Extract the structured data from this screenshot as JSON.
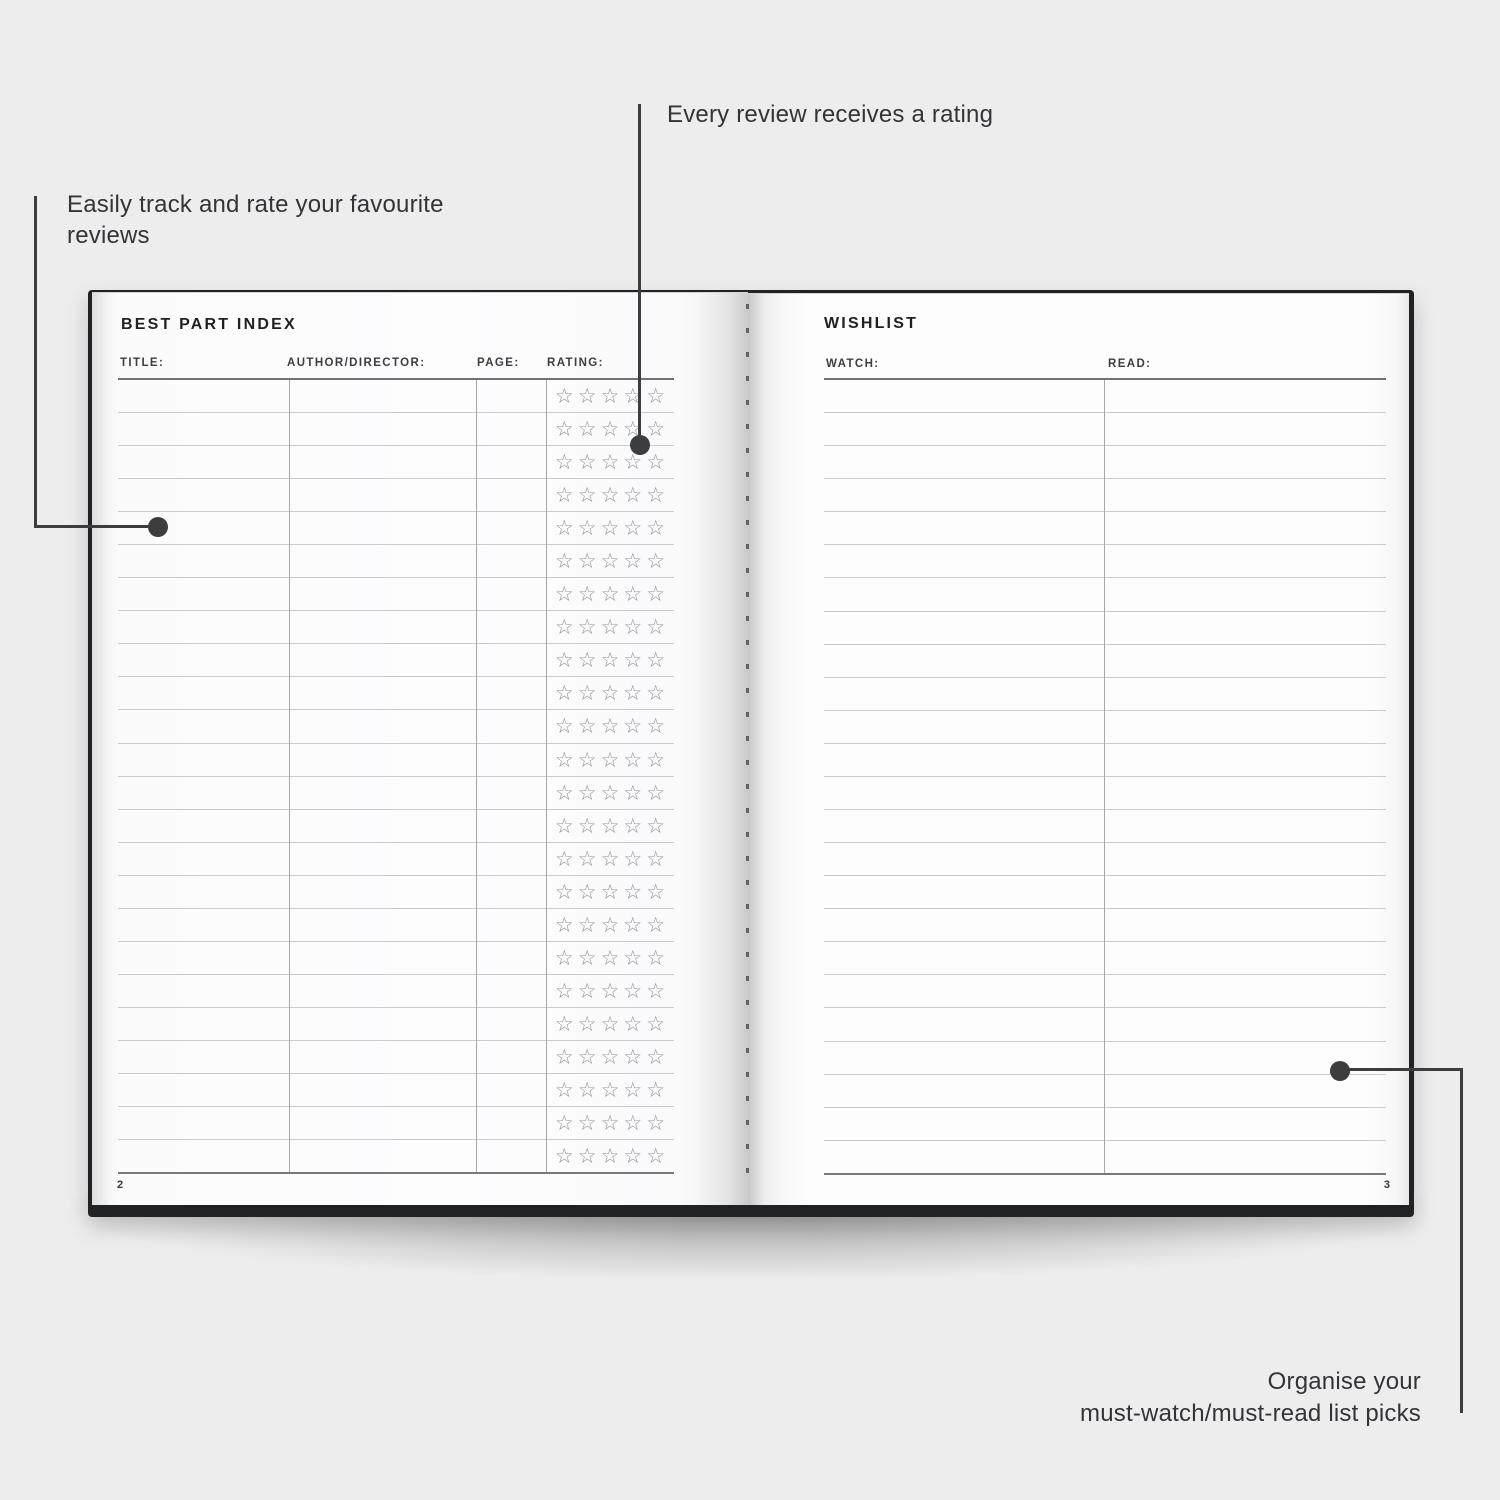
{
  "background_color": "#ededee",
  "annotations": {
    "track_rate": "Easily track and rate your favourite reviews",
    "rating": "Every review receives a rating",
    "wishlist_line1": "Organise your",
    "wishlist_line2": "must-watch/must-read list picks"
  },
  "left_page": {
    "title": "BEST PART INDEX",
    "columns": [
      "TITLE:",
      "AUTHOR/DIRECTOR:",
      "PAGE:",
      "RATING:"
    ],
    "rows": 24,
    "stars_per_row": 5,
    "star_char": "☆",
    "page_number": "2"
  },
  "right_page": {
    "title": "WISHLIST",
    "columns": [
      "WATCH:",
      "READ:"
    ],
    "rows": 24,
    "page_number": "3"
  },
  "colors": {
    "callout": "#3b3d3f",
    "cover": "#202224",
    "row_line": "#c9cbcc",
    "strong_line": "#6f7274",
    "star": "#939597",
    "text": "#323437"
  }
}
